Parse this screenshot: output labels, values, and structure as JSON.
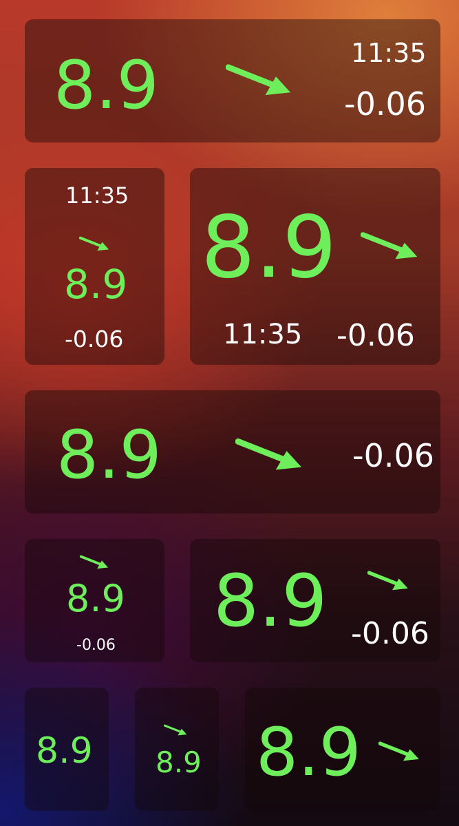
{
  "colors": {
    "glucose": "#6dee5a",
    "secondary_text": "#ffffff",
    "tile_background": "rgba(20,8,8,0.42)"
  },
  "widgets": [
    {
      "name": "wide-4x1-full",
      "glucose": "8.9",
      "time": "11:35",
      "delta": "-0.06",
      "trend_icon": "arrow-down-right-icon"
    },
    {
      "name": "small-2x2-full",
      "glucose": "8.9",
      "time": "11:35",
      "delta": "-0.06",
      "trend_icon": "arrow-down-right-icon"
    },
    {
      "name": "large-3x2-full",
      "glucose": "8.9",
      "time": "11:35",
      "delta": "-0.06",
      "trend_icon": "arrow-down-right-icon"
    },
    {
      "name": "wide-4x1-delta",
      "glucose": "8.9",
      "delta": "-0.06",
      "trend_icon": "arrow-down-right-icon"
    },
    {
      "name": "small-2x1-delta",
      "glucose": "8.9",
      "delta": "-0.06",
      "trend_icon": "arrow-down-right-icon"
    },
    {
      "name": "medium-3x1-delta",
      "glucose": "8.9",
      "delta": "-0.06",
      "trend_icon": "arrow-down-right-icon"
    },
    {
      "name": "tiny-1x1-glucose",
      "glucose": "8.9"
    },
    {
      "name": "tiny-1x1-arrow",
      "glucose": "8.9",
      "trend_icon": "arrow-down-right-icon"
    },
    {
      "name": "medium-2x1-arrow",
      "glucose": "8.9",
      "trend_icon": "arrow-down-right-icon"
    }
  ]
}
